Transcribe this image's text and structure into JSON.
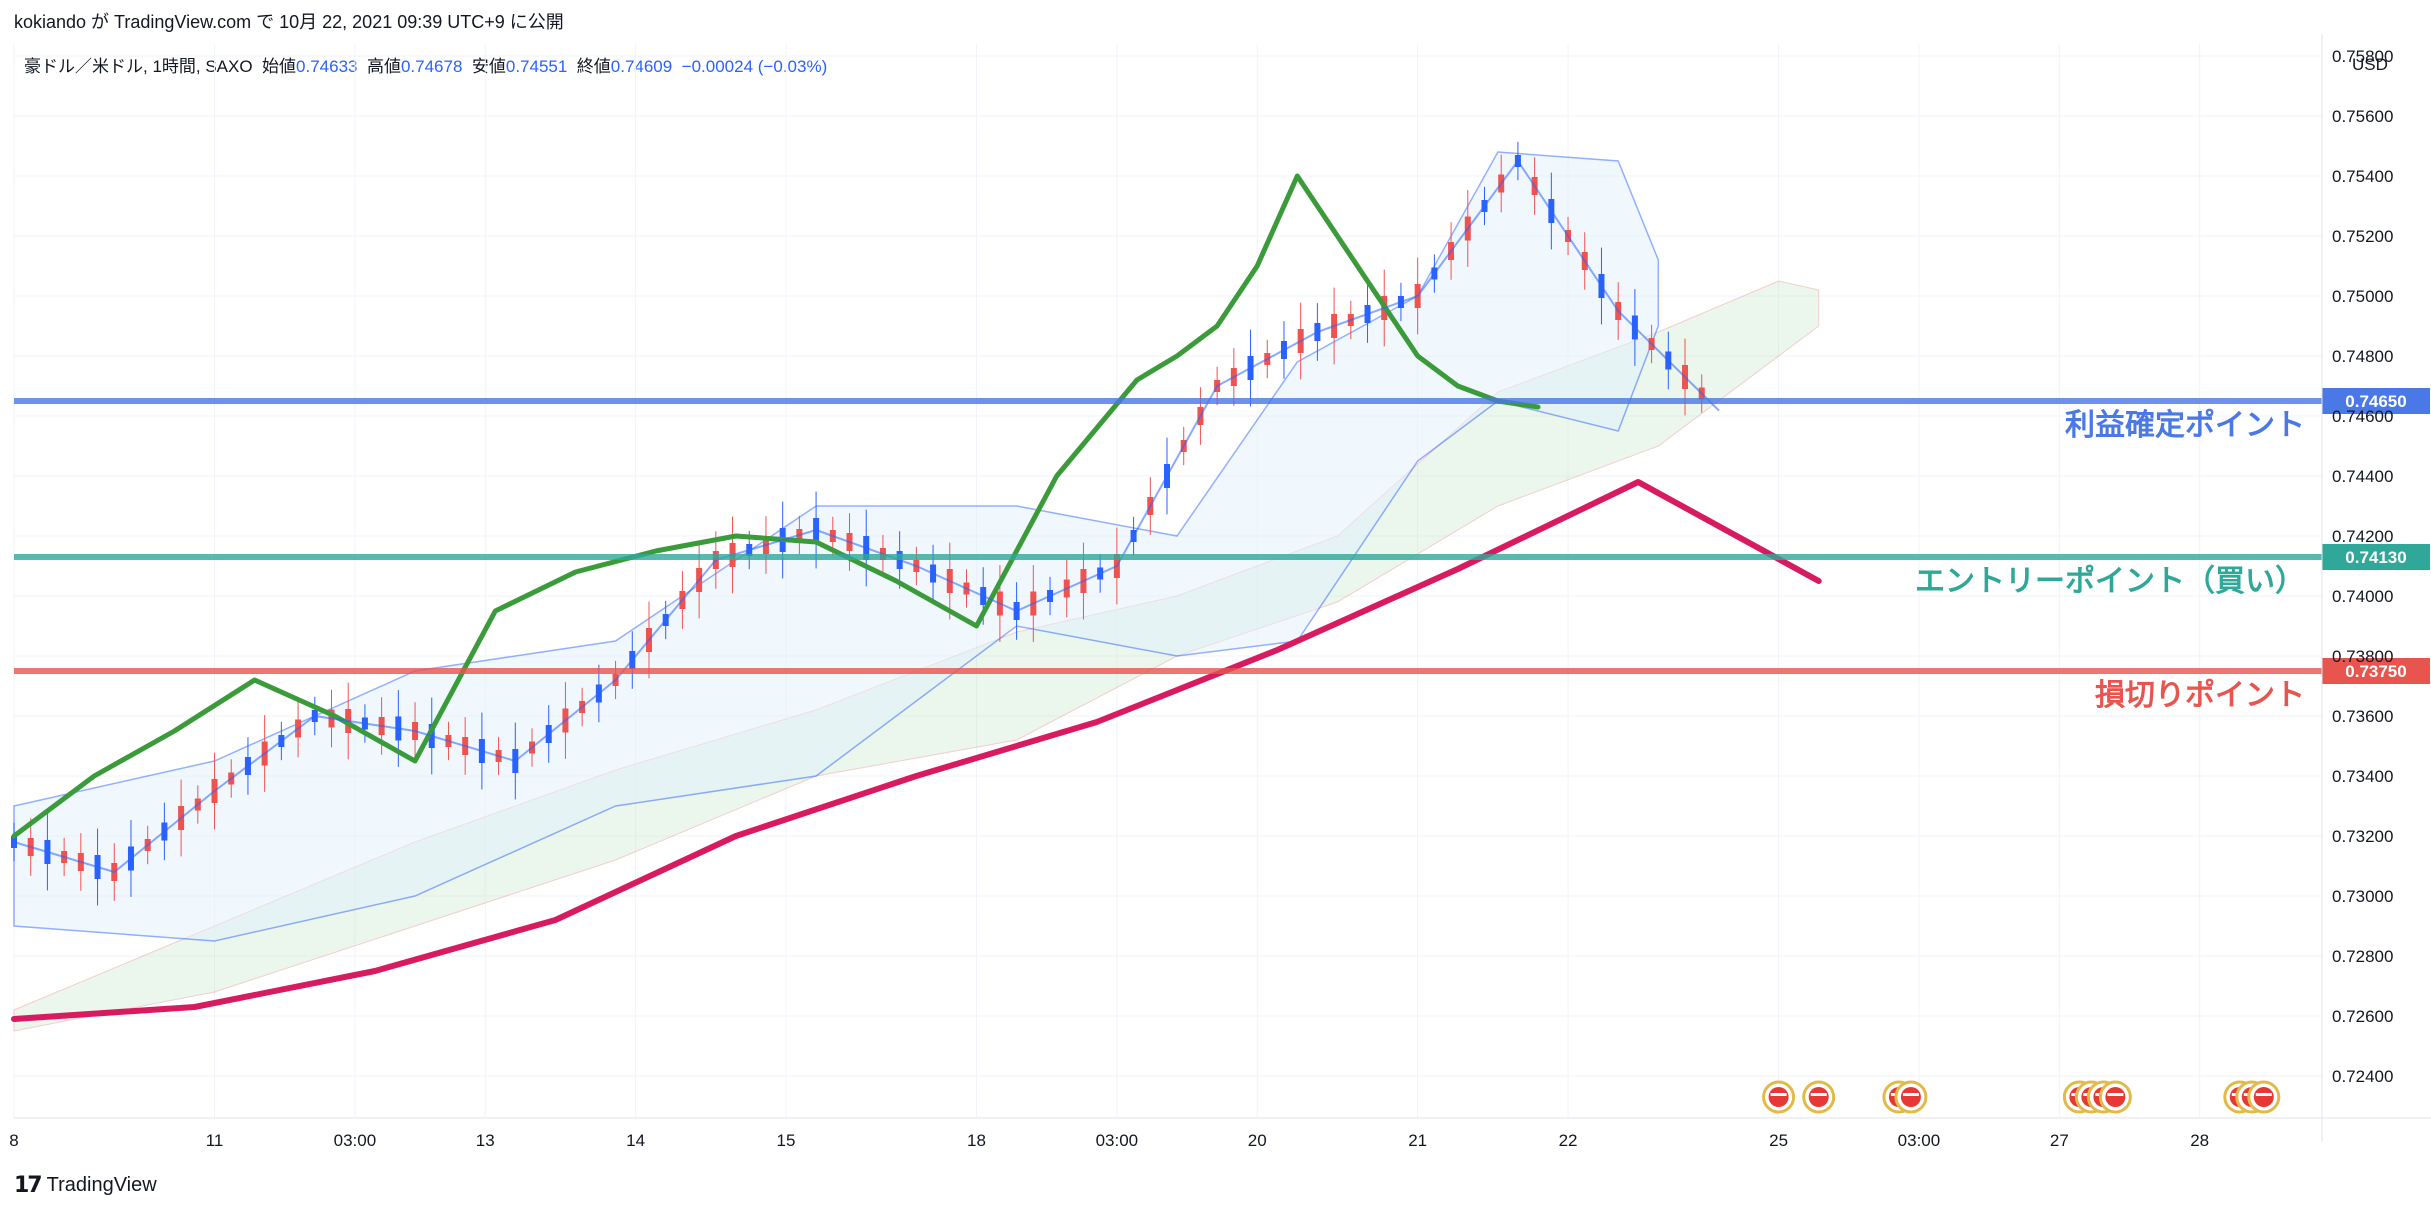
{
  "header": {
    "publish_line": "kokiando が TradingView.com で 10月 22, 2021 09:39 UTC+9 に公開",
    "symbol": "豪ドル／米ドル, 1時間, SAXO",
    "open_label": "始値",
    "open": "0.74633",
    "high_label": "高値",
    "high": "0.74678",
    "low_label": "安値",
    "low": "0.74551",
    "close_label": "終値",
    "close": "0.74609",
    "change": "−0.00024 (−0.03%)"
  },
  "footer": {
    "brand": "TradingView",
    "logo_icon": "tradingview-logo-icon"
  },
  "chart_data": {
    "type": "line",
    "title": "",
    "currency": "USD",
    "x_ticks": [
      "8",
      "11",
      "03:00",
      "13",
      "14",
      "15",
      "18",
      "03:00",
      "20",
      "21",
      "22",
      "25",
      "03:00",
      "27",
      "28"
    ],
    "y_ticks": [
      "0.75800",
      "0.75600",
      "0.75400",
      "0.75200",
      "0.75000",
      "0.74800",
      "0.74600",
      "0.74400",
      "0.74200",
      "0.74000",
      "0.73800",
      "0.73600",
      "0.73400",
      "0.73200",
      "0.73000",
      "0.72800",
      "0.72600",
      "0.72400"
    ],
    "ylim": [
      0.7226,
      0.7584
    ],
    "grid": true,
    "horizontal_levels": [
      {
        "price": 0.7465,
        "label": "0.74650",
        "annotation": "利益確定ポイント",
        "color": "#4a78e6"
      },
      {
        "price": 0.7413,
        "label": "0.74130",
        "annotation": "エントリーポイント（買い）",
        "color": "#2fa89a"
      },
      {
        "price": 0.7375,
        "label": "0.73750",
        "annotation": "損切りポイント",
        "color": "#e8544e"
      }
    ],
    "series": [
      {
        "name": "",
        "color": "#d81b60",
        "x": [
          0,
          9,
          18,
          27,
          36,
          45,
          54,
          63,
          72,
          81,
          90
        ],
        "y": [
          0.7259,
          0.7263,
          0.7275,
          0.7292,
          0.732,
          0.734,
          0.7358,
          0.7382,
          0.7409,
          0.7438,
          0.7405
        ]
      },
      {
        "name": "",
        "color": "#3b9b3b",
        "x": [
          0,
          4,
          8,
          12,
          16,
          20,
          24,
          28,
          32,
          36,
          40,
          44,
          48,
          52,
          56,
          58,
          60,
          62,
          64,
          66,
          68,
          70,
          72,
          74,
          76
        ],
        "y": [
          0.732,
          0.734,
          0.7355,
          0.7372,
          0.736,
          0.7345,
          0.7395,
          0.7408,
          0.7415,
          0.742,
          0.7418,
          0.7405,
          0.739,
          0.744,
          0.7472,
          0.748,
          0.749,
          0.751,
          0.754,
          0.752,
          0.75,
          0.748,
          0.747,
          0.7465,
          0.7463
        ]
      },
      {
        "name": "",
        "color": "#2962ff",
        "x": [
          0,
          5,
          10,
          15,
          20,
          25,
          30,
          35,
          40,
          45,
          50,
          55,
          60,
          65,
          70,
          75,
          80,
          85
        ],
        "y": [
          0.7318,
          0.7308,
          0.7335,
          0.736,
          0.7355,
          0.7345,
          0.7372,
          0.7412,
          0.7422,
          0.741,
          0.7395,
          0.741,
          0.747,
          0.7488,
          0.75,
          0.7545,
          0.7495,
          0.7462
        ]
      }
    ],
    "event_icons": [
      {
        "x": 88,
        "count": 1
      },
      {
        "x": 90,
        "count": 1
      },
      {
        "x": 94,
        "count": 2
      },
      {
        "x": 103,
        "count": 4
      },
      {
        "x": 111,
        "count": 3
      }
    ]
  }
}
